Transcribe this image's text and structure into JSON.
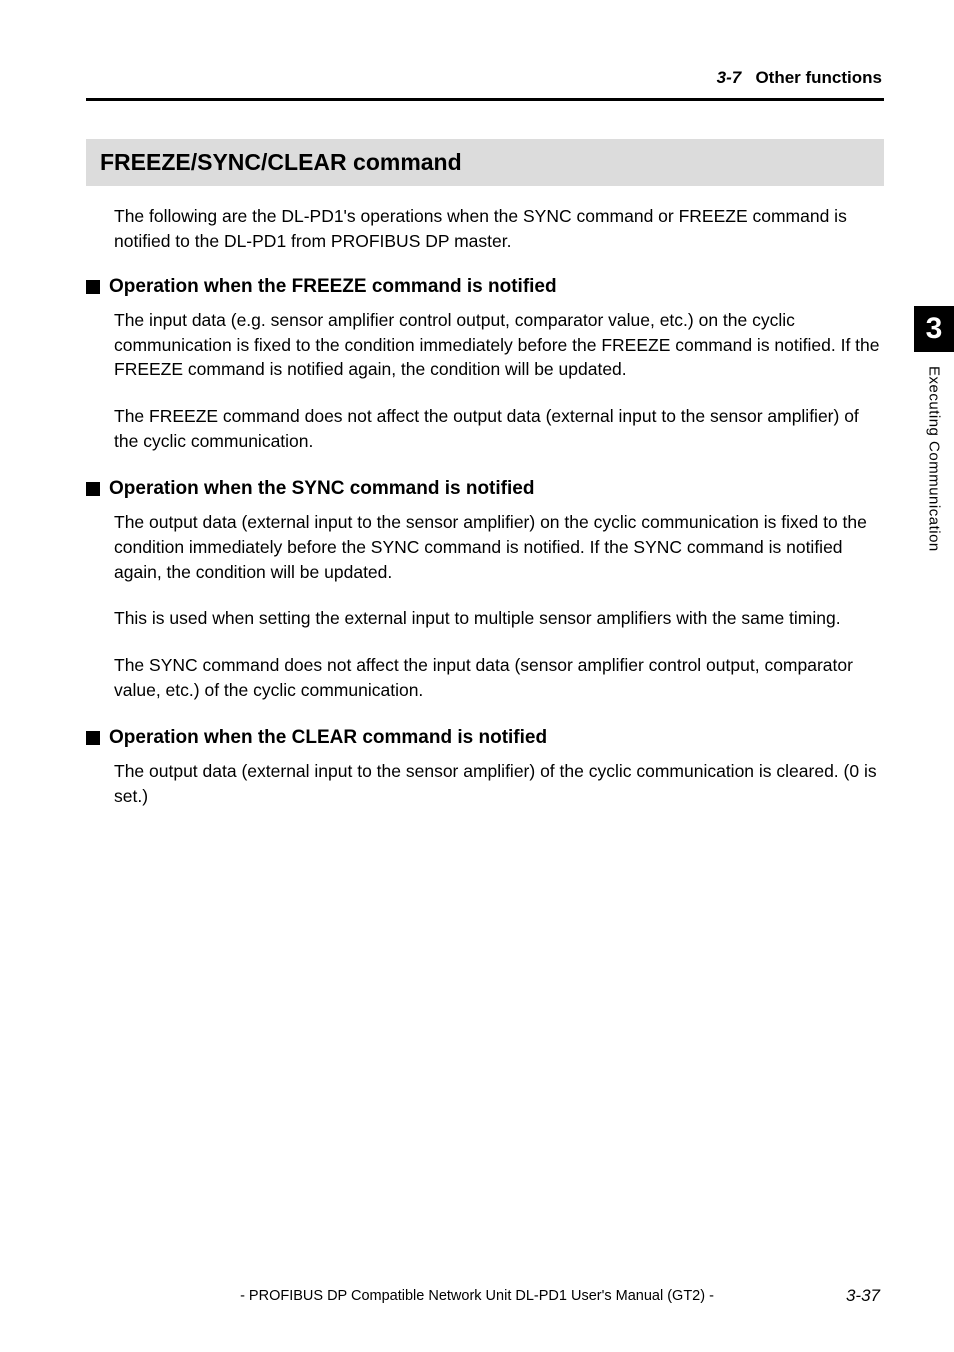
{
  "header": {
    "section_number": "3-7",
    "section_title": "Other functions"
  },
  "main_heading": "FREEZE/SYNC/CLEAR command",
  "intro": "The following are the DL-PD1's operations when the SYNC command or FREEZE command is notified to the DL-PD1 from PROFIBUS DP master.",
  "sections": [
    {
      "heading": "Operation when the FREEZE command is notified",
      "paragraphs": [
        "The input data (e.g. sensor amplifier control output, comparator value, etc.) on the cyclic communication is fixed to the condition immediately before the FREEZE command is notified. If the FREEZE command is notified again, the condition will be updated.",
        "The FREEZE command does not affect the output data (external input to the sensor amplifier) of the cyclic communication."
      ]
    },
    {
      "heading": "Operation when the SYNC command is notified",
      "paragraphs": [
        "The output data (external input to the sensor amplifier) on the cyclic communication is fixed to the condition immediately before the SYNC command is notified. If the SYNC command is notified again, the condition will be updated.",
        "This is used when setting the external input to multiple sensor amplifiers with the same timing.",
        "The SYNC command does not affect the input data (sensor amplifier control output, comparator value, etc.) of the cyclic communication."
      ]
    },
    {
      "heading": "Operation when the CLEAR command is notified",
      "paragraphs": [
        "The output data (external input to the sensor amplifier) of the cyclic communication is cleared. (0 is set.)"
      ]
    }
  ],
  "side_tab": {
    "chapter_number": "3",
    "chapter_title": "Executing Communication"
  },
  "footer": {
    "text": "- PROFIBUS DP Compatible Network Unit DL-PD1 User's Manual (GT2) -",
    "page_number": "3-37"
  },
  "colors": {
    "heading_bg": "#dcdcdc",
    "text": "#000000",
    "tab_bg": "#000000",
    "tab_fg": "#ffffff",
    "page_bg": "#ffffff"
  }
}
